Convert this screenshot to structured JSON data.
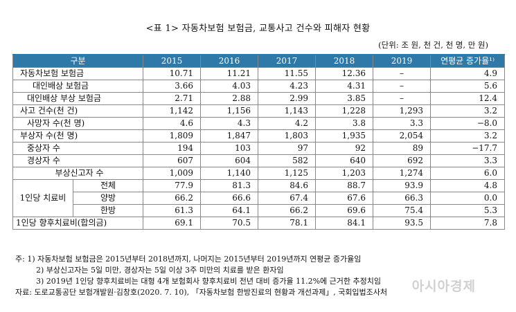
{
  "title": "<표 1> 자동차보험 보험금, 교통사고 건수와 피해자 현황",
  "unit": "(단위: 조 원, 천 건, 천 명, 만 원)",
  "headers": {
    "category": "구분",
    "y2015": "2015",
    "y2016": "2016",
    "y2017": "2017",
    "y2018": "2018",
    "y2019": "2019",
    "growth": "연평균 증가율¹⁾"
  },
  "rows": {
    "r1": {
      "label": "자동차보험 보험금",
      "v": [
        "10.71",
        "11.21",
        "11.55",
        "12.36",
        "–",
        "4.9"
      ]
    },
    "r2": {
      "label": "대인배상 보험금",
      "v": [
        "3.66",
        "4.03",
        "4.23",
        "4.31",
        "–",
        "5.6"
      ]
    },
    "r3": {
      "label": "대인배상 부상 보험금",
      "v": [
        "2.71",
        "2.88",
        "2.99",
        "3.85",
        "–",
        "12.4"
      ]
    },
    "r4": {
      "label": "사고 건수(천 건)",
      "v": [
        "1,142",
        "1,156",
        "1,143",
        "1,228",
        "1,293",
        "3.2"
      ]
    },
    "r5": {
      "label": "사망자 수(천 명)",
      "v": [
        "4.6",
        "4.3",
        "4.2",
        "3.8",
        "3.3",
        "−8.0"
      ]
    },
    "r6": {
      "label": "부상자 수(천 명)",
      "v": [
        "1,809",
        "1,847",
        "1,803",
        "1,935",
        "2,054",
        "3.2"
      ]
    },
    "r7": {
      "label": "중상자 수",
      "v": [
        "194",
        "103",
        "97",
        "92",
        "89",
        "−17.7"
      ]
    },
    "r8": {
      "label": "경상자 수",
      "v": [
        "607",
        "604",
        "582",
        "640",
        "692",
        "3.3"
      ]
    },
    "r9": {
      "label": "부상신고자 수",
      "v": [
        "1,009",
        "1,140",
        "1,125",
        "1,203",
        "1,274",
        "6.0"
      ]
    },
    "r10": {
      "group": "1인당 치료비",
      "label": "전체",
      "v": [
        "77.9",
        "81.3",
        "84.6",
        "88.7",
        "93.9",
        "4.8"
      ]
    },
    "r11": {
      "label": "양방",
      "v": [
        "66.2",
        "66.6",
        "67.4",
        "67.6",
        "66.3",
        "0.0"
      ]
    },
    "r12": {
      "label": "한방",
      "v": [
        "61.3",
        "64.1",
        "66.2",
        "69.6",
        "75.4",
        "5.3"
      ]
    },
    "r13": {
      "label": "1인당 향후치료비(합의금)",
      "v": [
        "69.1",
        "70.5",
        "78.1",
        "84.1",
        "93.5",
        "7.8"
      ]
    }
  },
  "notes": {
    "n1": "주: 1) 자동차보험 보험금은 2015년부터 2018년까지, 나머지는 2015년부터 2019년까지 연평균 증가율임",
    "n2": "2) 부상신고자는 5일 미만, 경상자는 5일 이상 3주 미만의 치료를 받은 환자임",
    "n3": "3) 2019년 1인당 향후치료비는 대형 4개 보험회사 향후치료비 전년 대비 증가율 11.2%에 근거한 추정치임",
    "n4": "자료: 도로교통공단 보험개발원·김창호(2020. 7. 10), 「자동차보험 한방진료의 현황과 개선과제」, 국회입법조사처"
  },
  "watermark": "아시아경제"
}
